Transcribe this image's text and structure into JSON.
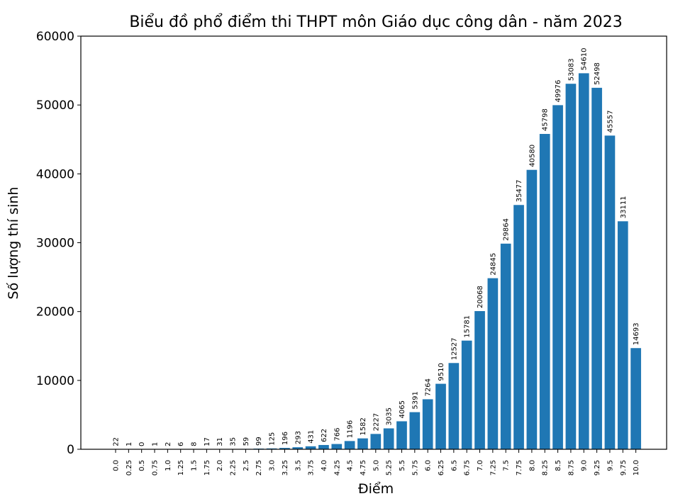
{
  "chart_data": {
    "type": "bar",
    "title": "Biểu đồ phổ điểm thi THPT môn Giáo dục công dân - năm 2023",
    "xlabel": "Điểm",
    "ylabel": "Số lượng thí sinh",
    "ylim": [
      0,
      60000
    ],
    "yticks": [
      0,
      10000,
      20000,
      30000,
      40000,
      50000,
      60000
    ],
    "grid": false,
    "color": "#1f77b4",
    "categories": [
      "0.0",
      "0.25",
      "0.5",
      "0.75",
      "1.0",
      "1.25",
      "1.5",
      "1.75",
      "2.0",
      "2.25",
      "2.5",
      "2.75",
      "3.0",
      "3.25",
      "3.5",
      "3.75",
      "4.0",
      "4.25",
      "4.5",
      "4.75",
      "5.0",
      "5.25",
      "5.5",
      "5.75",
      "6.0",
      "6.25",
      "6.5",
      "6.75",
      "7.0",
      "7.25",
      "7.5",
      "7.75",
      "8.0",
      "8.25",
      "8.5",
      "8.75",
      "9.0",
      "9.25",
      "9.5",
      "9.75",
      "10.0"
    ],
    "values": [
      22,
      1,
      0,
      1,
      2,
      6,
      8,
      17,
      31,
      35,
      59,
      99,
      125,
      196,
      293,
      431,
      622,
      766,
      1196,
      1582,
      2227,
      3035,
      4065,
      5391,
      7264,
      9510,
      12527,
      15781,
      20068,
      24845,
      29864,
      35477,
      40580,
      45798,
      49976,
      53083,
      54610,
      52498,
      45557,
      33111,
      14693
    ]
  }
}
